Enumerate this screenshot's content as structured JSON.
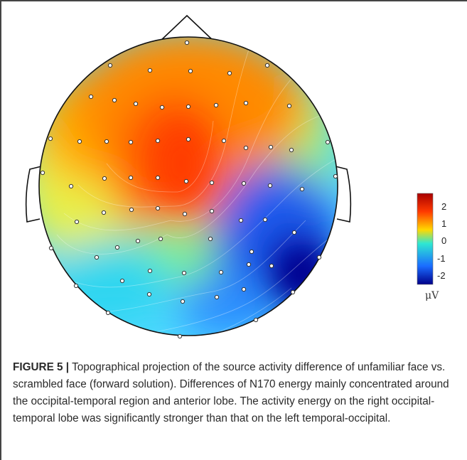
{
  "figure": {
    "label": "FIGURE 5 |",
    "caption": "Topographical projection of the source activity difference of unfamiliar face vs. scrambled face (forward solution). Differences of N170 energy mainly concentrated around the occipital-temporal region and anterior lobe. The activity energy on the right occipital-temporal lobe was significantly stronger than that on the left temporal-occipital."
  },
  "colorbar": {
    "ticks": [
      "2",
      "1",
      "0",
      "-1",
      "-2"
    ],
    "unit": "μV",
    "colors": [
      "#a80000",
      "#ff3a00",
      "#ffd800",
      "#2ee8d2",
      "#1a6cff",
      "#00008a"
    ]
  },
  "topomap": {
    "electrode_color": "#ffffff",
    "outline_color": "#111111"
  }
}
